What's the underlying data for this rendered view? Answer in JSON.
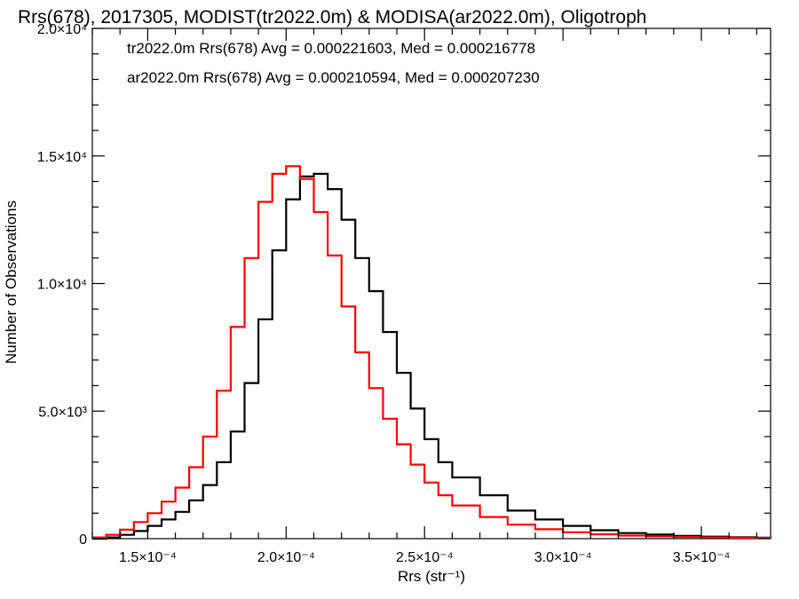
{
  "chart_data": {
    "type": "line",
    "step": true,
    "title": "Rrs(678), 2017305, MODIST(tr2022.0m) & MODISA(ar2022.0m), Oligotroph",
    "xlabel": "Rrs (str⁻¹)",
    "ylabel": "Number of Observations",
    "xlim": [
      0.00013,
      0.000375
    ],
    "ylim": [
      0,
      20000
    ],
    "grid": false,
    "xticks": [
      {
        "value": 0.00015,
        "label": "1.5×10⁻⁴"
      },
      {
        "value": 0.0002,
        "label": "2.0×10⁻⁴"
      },
      {
        "value": 0.00025,
        "label": "2.5×10⁻⁴"
      },
      {
        "value": 0.0003,
        "label": "3.0×10⁻⁴"
      },
      {
        "value": 0.00035,
        "label": "3.5×10⁻⁴"
      }
    ],
    "yticks": [
      {
        "value": 0,
        "label": "0"
      },
      {
        "value": 5000,
        "label": "5.0×10³"
      },
      {
        "value": 10000,
        "label": "1.0×10⁴"
      },
      {
        "value": 15000,
        "label": "1.5×10⁴"
      },
      {
        "value": 20000,
        "label": "2.0×10⁴"
      }
    ],
    "annotations": [
      {
        "text": "tr2022.0m Rrs(678) Avg = 0.000221603, Med = 0.000216778",
        "color": "#000000"
      },
      {
        "text": "ar2022.0m Rrs(678) Avg = 0.000210594, Med = 0.000207230",
        "color": "#ff0000"
      }
    ],
    "series": [
      {
        "color": "#000000",
        "x": [
          0.00013,
          0.000135,
          0.00014,
          0.000145,
          0.00015,
          0.000155,
          0.00016,
          0.000165,
          0.00017,
          0.000175,
          0.00018,
          0.000185,
          0.00019,
          0.000195,
          0.0002,
          0.000205,
          0.00021,
          0.000215,
          0.00022,
          0.000225,
          0.00023,
          0.000235,
          0.00024,
          0.000245,
          0.00025,
          0.000255,
          0.00026,
          0.00027,
          0.00028,
          0.00029,
          0.0003,
          0.00031,
          0.00032,
          0.00033,
          0.00034,
          0.00035,
          0.00036,
          0.00037,
          0.000375
        ],
        "y": [
          0,
          50,
          150,
          300,
          500,
          750,
          1050,
          1500,
          2100,
          3000,
          4200,
          6100,
          8600,
          11300,
          13300,
          14200,
          14300,
          13700,
          12500,
          11000,
          9700,
          8100,
          6500,
          5100,
          3900,
          3000,
          2400,
          1700,
          1100,
          750,
          500,
          330,
          220,
          160,
          110,
          80,
          60,
          40,
          30
        ]
      },
      {
        "color": "#ff0000",
        "x": [
          0.00013,
          0.000135,
          0.00014,
          0.000145,
          0.00015,
          0.000155,
          0.00016,
          0.000165,
          0.00017,
          0.000175,
          0.00018,
          0.000185,
          0.00019,
          0.000195,
          0.0002,
          0.000205,
          0.00021,
          0.000215,
          0.00022,
          0.000225,
          0.00023,
          0.000235,
          0.00024,
          0.000245,
          0.00025,
          0.000255,
          0.00026,
          0.00027,
          0.00028,
          0.00029,
          0.0003,
          0.00031,
          0.00032,
          0.00033,
          0.00034,
          0.00035,
          0.00036,
          0.00037,
          0.000375
        ],
        "y": [
          50,
          150,
          350,
          650,
          1000,
          1450,
          2000,
          2800,
          4000,
          5800,
          8300,
          11000,
          13200,
          14300,
          14600,
          14100,
          12800,
          11100,
          9100,
          7300,
          5900,
          4700,
          3700,
          2900,
          2200,
          1700,
          1300,
          850,
          550,
          370,
          250,
          170,
          120,
          90,
          70,
          50,
          40,
          30,
          25
        ]
      }
    ]
  }
}
